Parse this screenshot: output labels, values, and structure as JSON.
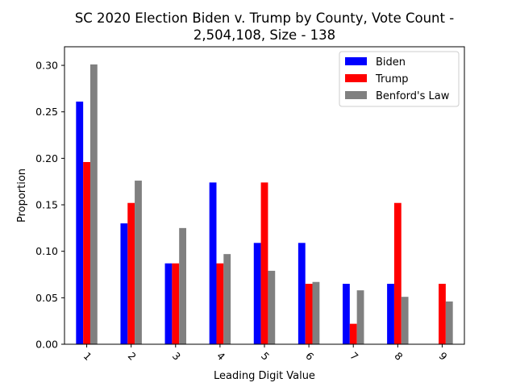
{
  "chart_data": {
    "type": "bar",
    "title_lines": [
      "SC 2020 Election Biden v. Trump by County, Vote Count -",
      "2,504,108, Size - 138"
    ],
    "xlabel": "Leading Digit Value",
    "ylabel": "Proportion",
    "categories": [
      "1",
      "2",
      "3",
      "4",
      "5",
      "6",
      "7",
      "8",
      "9"
    ],
    "ylim": [
      0,
      0.32
    ],
    "yticks": [
      0.0,
      0.05,
      0.1,
      0.15,
      0.2,
      0.25,
      0.3
    ],
    "ytick_labels": [
      "0.00",
      "0.05",
      "0.10",
      "0.15",
      "0.20",
      "0.25",
      "0.30"
    ],
    "legend_position": "top-right",
    "grid": false,
    "series": [
      {
        "name": "Biden",
        "color": "#0000ff",
        "values": [
          0.261,
          0.13,
          0.087,
          0.174,
          0.109,
          0.109,
          0.065,
          0.065,
          0.0
        ]
      },
      {
        "name": "Trump",
        "color": "#ff0000",
        "values": [
          0.196,
          0.152,
          0.087,
          0.087,
          0.174,
          0.065,
          0.022,
          0.152,
          0.065
        ]
      },
      {
        "name": "Benford's Law",
        "color": "#808080",
        "values": [
          0.301,
          0.176,
          0.125,
          0.097,
          0.079,
          0.067,
          0.058,
          0.051,
          0.046
        ]
      }
    ]
  }
}
